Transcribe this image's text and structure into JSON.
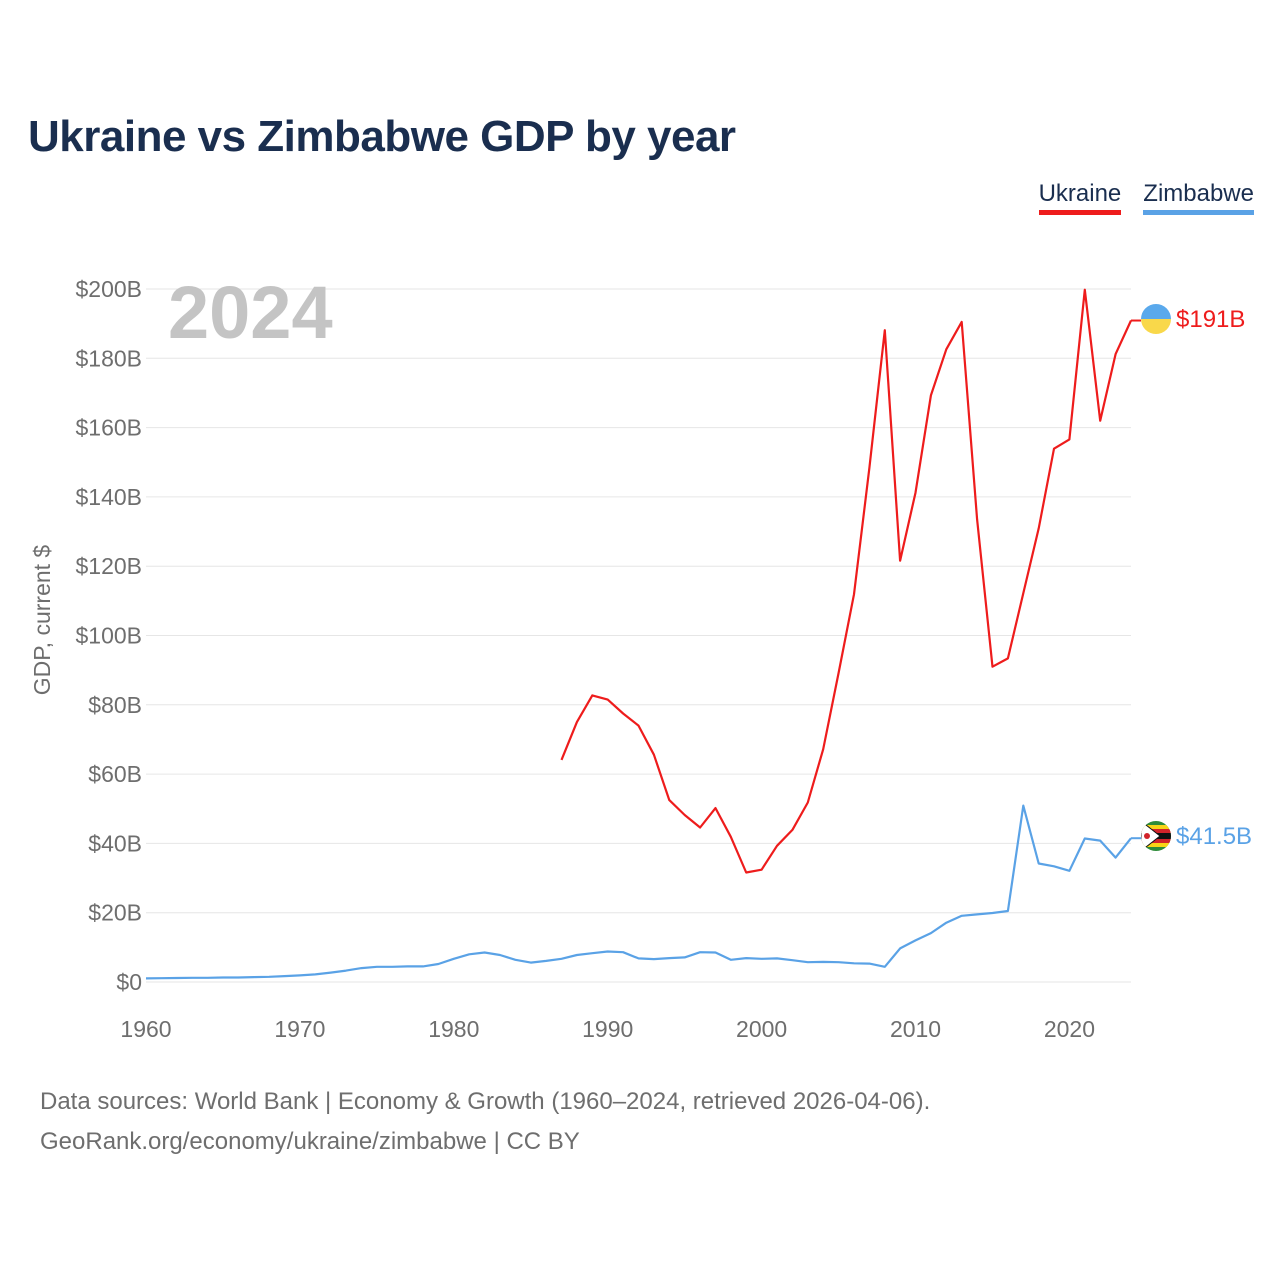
{
  "title": "Ukraine vs Zimbabwe GDP by year",
  "legend": [
    {
      "label": "Ukraine",
      "color": "#ee1c1c"
    },
    {
      "label": "Zimbabwe",
      "color": "#5aa2e6"
    }
  ],
  "year_label": "2024",
  "end_labels": {
    "ukraine": "$191B",
    "zimbabwe": "$41.5B"
  },
  "footer": {
    "line1": "Data sources: World Bank | Economy & Growth (1960–2024, retrieved 2026-04-06).",
    "line2": "GeoRank.org/economy/ukraine/zimbabwe | CC BY"
  },
  "chart_data": {
    "type": "line",
    "title": "Ukraine vs Zimbabwe GDP by year",
    "xlabel": "",
    "ylabel": "GDP, current $",
    "xlim": [
      1960,
      2024
    ],
    "ylim": [
      0,
      200
    ],
    "x_ticks": [
      1960,
      1970,
      1980,
      1990,
      2000,
      2010,
      2020
    ],
    "y_ticks": [
      0,
      20,
      40,
      60,
      80,
      100,
      120,
      140,
      160,
      180,
      200
    ],
    "y_tick_labels": [
      "$0",
      "$20B",
      "$40B",
      "$60B",
      "$80B",
      "$100B",
      "$120B",
      "$140B",
      "$160B",
      "$180B",
      "$200B"
    ],
    "units": "billions USD",
    "grid": true,
    "series": [
      {
        "name": "Ukraine",
        "color": "#ee1c1c",
        "x": [
          1987,
          1988,
          1989,
          1990,
          1991,
          1992,
          1993,
          1994,
          1995,
          1996,
          1997,
          1998,
          1999,
          2000,
          2001,
          2002,
          2003,
          2004,
          2005,
          2006,
          2007,
          2008,
          2009,
          2010,
          2011,
          2012,
          2013,
          2014,
          2015,
          2016,
          2017,
          2018,
          2019,
          2020,
          2021,
          2022,
          2023,
          2024
        ],
        "values": [
          64.1,
          75.0,
          82.7,
          81.5,
          77.5,
          74.0,
          65.6,
          52.5,
          48.2,
          44.6,
          50.2,
          41.9,
          31.6,
          32.4,
          39.3,
          43.9,
          51.8,
          67.2,
          89.2,
          111.9,
          148.4,
          188.1,
          121.6,
          141.2,
          169.3,
          182.6,
          190.5,
          133.5,
          91.0,
          93.4,
          112.2,
          130.9,
          153.9,
          156.6,
          199.8,
          162.0,
          181.2,
          190.9
        ]
      },
      {
        "name": "Zimbabwe",
        "color": "#5aa2e6",
        "x": [
          1960,
          1961,
          1962,
          1963,
          1964,
          1965,
          1966,
          1967,
          1968,
          1969,
          1970,
          1971,
          1972,
          1973,
          1974,
          1975,
          1976,
          1977,
          1978,
          1979,
          1980,
          1981,
          1982,
          1983,
          1984,
          1985,
          1986,
          1987,
          1988,
          1989,
          1990,
          1991,
          1992,
          1993,
          1994,
          1995,
          1996,
          1997,
          1998,
          1999,
          2000,
          2001,
          2002,
          2003,
          2004,
          2005,
          2006,
          2007,
          2008,
          2009,
          2010,
          2011,
          2012,
          2013,
          2014,
          2015,
          2016,
          2017,
          2018,
          2019,
          2020,
          2021,
          2022,
          2023,
          2024
        ],
        "values": [
          1.05,
          1.1,
          1.15,
          1.2,
          1.2,
          1.3,
          1.3,
          1.4,
          1.5,
          1.7,
          1.9,
          2.2,
          2.7,
          3.3,
          4.0,
          4.4,
          4.4,
          4.5,
          4.5,
          5.2,
          6.7,
          8.0,
          8.5,
          7.8,
          6.4,
          5.6,
          6.1,
          6.7,
          7.8,
          8.3,
          8.8,
          8.6,
          6.8,
          6.6,
          6.9,
          7.1,
          8.6,
          8.5,
          6.4,
          6.9,
          6.7,
          6.8,
          6.3,
          5.7,
          5.8,
          5.7,
          5.4,
          5.3,
          4.4,
          9.7,
          12.0,
          14.1,
          17.1,
          19.1,
          19.5,
          19.9,
          20.5,
          50.9,
          34.2,
          33.4,
          32.1,
          41.4,
          40.8,
          35.9,
          41.5
        ]
      }
    ]
  }
}
